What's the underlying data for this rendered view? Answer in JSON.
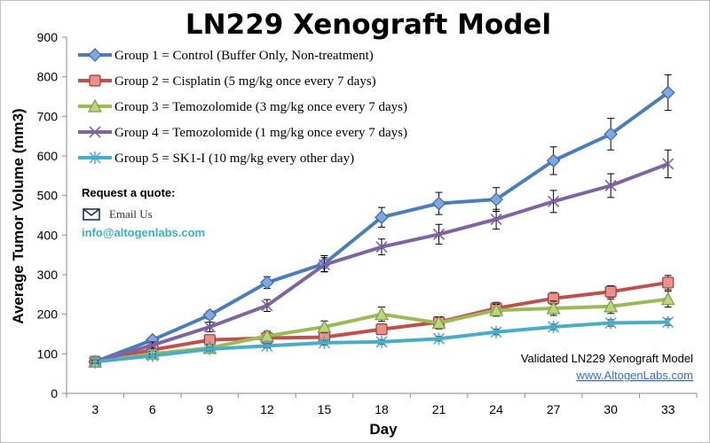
{
  "chart_data": {
    "type": "line",
    "title": "LN229 Xenograft Model",
    "xlabel": "Day",
    "ylabel": "Average Tumor Volume (mm3)",
    "x": [
      3,
      6,
      9,
      12,
      15,
      18,
      21,
      24,
      27,
      30,
      33
    ],
    "x_tick_labels": [
      "3",
      "6",
      "9",
      "12",
      "15",
      "18",
      "21",
      "24",
      "27",
      "30",
      "33"
    ],
    "ylim": [
      0,
      900
    ],
    "y_ticks": [
      0,
      100,
      200,
      300,
      400,
      500,
      600,
      700,
      800,
      900
    ],
    "y_tick_labels": [
      "0",
      "100",
      "200",
      "300",
      "400",
      "500",
      "600",
      "700",
      "800",
      "900"
    ],
    "grid": false,
    "legend_position": "top-left",
    "series": [
      {
        "name": "Group 1 = Control (Buffer Only, Non-treatment)",
        "color": "#4a7ebb",
        "marker": "diamond",
        "values": [
          80,
          135,
          198,
          280,
          328,
          445,
          480,
          490,
          588,
          655,
          760
        ],
        "errors": [
          5,
          8,
          10,
          15,
          20,
          25,
          28,
          30,
          35,
          40,
          45
        ]
      },
      {
        "name": "Group 2 = Cisplatin (5 mg/kg once every 7 days)",
        "color": "#c0504d",
        "marker": "square",
        "values": [
          80,
          110,
          135,
          140,
          142,
          162,
          180,
          215,
          240,
          257,
          280
        ],
        "errors": [
          5,
          6,
          8,
          10,
          10,
          12,
          12,
          15,
          15,
          15,
          18
        ]
      },
      {
        "name": "Group 3 =  Temozolomide (3 mg/kg once every 7 days)",
        "color": "#9bbb59",
        "marker": "triangle",
        "values": [
          80,
          100,
          115,
          145,
          168,
          200,
          178,
          210,
          215,
          220,
          238
        ],
        "errors": [
          5,
          6,
          8,
          12,
          15,
          18,
          15,
          15,
          18,
          18,
          20
        ]
      },
      {
        "name": "Group 4 =  Temozolomide (1 mg/kg once every 7 days)",
        "color": "#8064a2",
        "marker": "x",
        "values": [
          80,
          122,
          168,
          222,
          325,
          370,
          402,
          440,
          485,
          525,
          580
        ],
        "errors": [
          5,
          8,
          12,
          15,
          18,
          20,
          25,
          25,
          28,
          30,
          35
        ]
      },
      {
        "name": "Group 5 = SK1-I (10 mg/kg every other day)",
        "color": "#4bacc6",
        "marker": "star",
        "values": [
          80,
          95,
          112,
          120,
          128,
          130,
          138,
          155,
          168,
          178,
          180
        ],
        "errors": [
          3,
          4,
          5,
          5,
          6,
          6,
          6,
          7,
          7,
          8,
          8
        ]
      }
    ],
    "annotations": {
      "quote_heading": "Request a quote:",
      "email_label": "Email Us",
      "email_address": "info@altogenlabs.com",
      "watermark": "Validated LN229 Xenograft Model",
      "website": "www.AltogenLabs.com"
    }
  }
}
